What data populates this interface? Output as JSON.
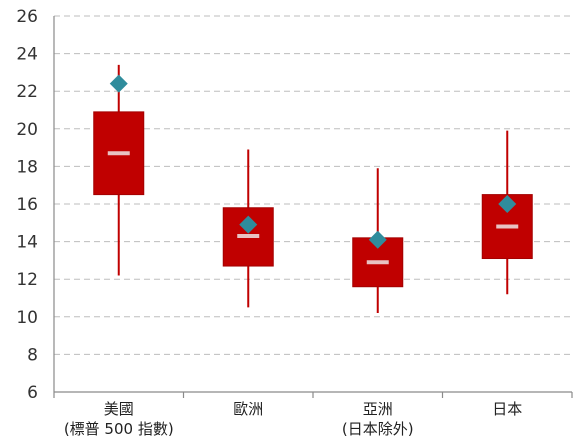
{
  "chart_data": {
    "type": "box",
    "ylim": [
      6,
      26
    ],
    "yticks": [
      6,
      8,
      10,
      12,
      14,
      16,
      18,
      20,
      22,
      24,
      26
    ],
    "grid": true,
    "colors": {
      "box": "#c00000",
      "median": "#e8c2c2",
      "mean_marker": "#2f8c9c"
    },
    "categories": [
      {
        "label_lines": [
          "美國",
          "(標普 500 指數)"
        ],
        "min": 12.2,
        "q1": 16.5,
        "median": 18.7,
        "q3": 20.9,
        "max": 23.4,
        "mean": 22.4
      },
      {
        "label_lines": [
          "歐洲"
        ],
        "min": 10.5,
        "q1": 12.7,
        "median": 14.3,
        "q3": 15.8,
        "max": 18.9,
        "mean": 14.9
      },
      {
        "label_lines": [
          "亞洲",
          "(日本除外)"
        ],
        "min": 10.2,
        "q1": 11.6,
        "median": 12.9,
        "q3": 14.2,
        "max": 17.9,
        "mean": 14.1
      },
      {
        "label_lines": [
          "日本"
        ],
        "min": 11.2,
        "q1": 13.1,
        "median": 14.8,
        "q3": 16.5,
        "max": 19.9,
        "mean": 16.0
      }
    ]
  }
}
